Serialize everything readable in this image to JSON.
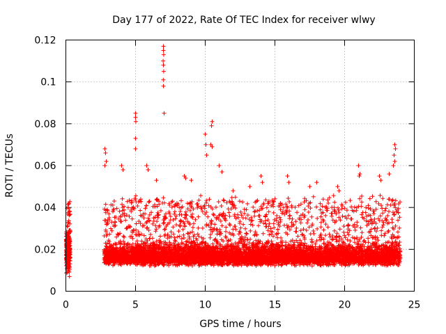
{
  "chart_data": {
    "type": "scatter",
    "title": "Day 177 of 2022, Rate Of TEC Index for receiver wlwy",
    "xlabel": "GPS time / hours",
    "ylabel": "ROTI / TECUs",
    "xlim": [
      0,
      25
    ],
    "ylim": [
      0,
      0.12
    ],
    "xticks": [
      0,
      5,
      10,
      15,
      20,
      25
    ],
    "xtick_labels": [
      "0",
      "5",
      "10",
      "15",
      "20",
      "25"
    ],
    "yticks": [
      0,
      0.02,
      0.04,
      0.06,
      0.08,
      0.1,
      0.12
    ],
    "ytick_labels": [
      "0",
      "0.02",
      "0.04",
      "0.06",
      "0.08",
      "0.1",
      "0.12"
    ],
    "grid": true,
    "marker": "+",
    "color": "#ff0000",
    "series": [
      {
        "name": "ROTI",
        "note": "approximately 8000 points: dense cloud 0-0.043 for 0-0.3 h; data gap 0.3-2.7 h; dense cloud 0.005-0.045 from 2.7-24 h with spikes",
        "points": [
          [
            7.0,
            0.117
          ],
          [
            7.0,
            0.115
          ],
          [
            7.02,
            0.113
          ],
          [
            6.98,
            0.11
          ],
          [
            7.0,
            0.108
          ],
          [
            7.02,
            0.105
          ],
          [
            6.99,
            0.101
          ],
          [
            7.0,
            0.098
          ],
          [
            7.05,
            0.085
          ],
          [
            5.0,
            0.085
          ],
          [
            5.0,
            0.083
          ],
          [
            5.02,
            0.081
          ],
          [
            5.0,
            0.073
          ],
          [
            5.0,
            0.068
          ],
          [
            10.5,
            0.081
          ],
          [
            10.45,
            0.079
          ],
          [
            10.0,
            0.075
          ],
          [
            10.05,
            0.07
          ],
          [
            10.1,
            0.065
          ],
          [
            10.4,
            0.07
          ],
          [
            10.5,
            0.069
          ],
          [
            2.8,
            0.068
          ],
          [
            2.85,
            0.066
          ],
          [
            2.9,
            0.062
          ],
          [
            2.8,
            0.06
          ],
          [
            23.6,
            0.07
          ],
          [
            23.65,
            0.068
          ],
          [
            23.55,
            0.065
          ],
          [
            23.6,
            0.062
          ],
          [
            23.5,
            0.06
          ],
          [
            21.0,
            0.06
          ],
          [
            21.1,
            0.056
          ],
          [
            21.05,
            0.055
          ],
          [
            4.0,
            0.06
          ],
          [
            4.1,
            0.058
          ],
          [
            5.8,
            0.06
          ],
          [
            5.9,
            0.058
          ],
          [
            8.5,
            0.055
          ],
          [
            8.6,
            0.054
          ],
          [
            9.0,
            0.053
          ],
          [
            11.0,
            0.06
          ],
          [
            11.2,
            0.057
          ],
          [
            14.0,
            0.055
          ],
          [
            14.1,
            0.052
          ],
          [
            15.9,
            0.055
          ],
          [
            16.0,
            0.052
          ],
          [
            17.5,
            0.05
          ],
          [
            18.0,
            0.052
          ],
          [
            19.5,
            0.05
          ],
          [
            19.6,
            0.048
          ],
          [
            22.5,
            0.055
          ],
          [
            22.6,
            0.053
          ],
          [
            23.2,
            0.056
          ],
          [
            12.0,
            0.048
          ],
          [
            13.2,
            0.05
          ],
          [
            6.5,
            0.053
          ]
        ]
      }
    ]
  }
}
